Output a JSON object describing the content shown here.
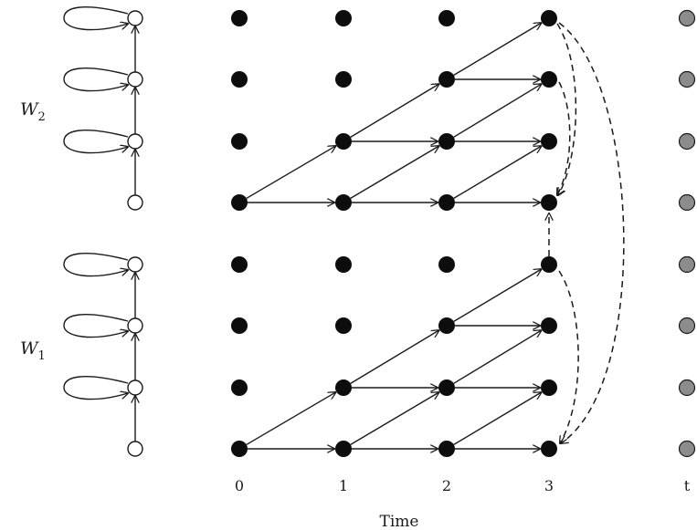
{
  "diagram": {
    "left_chains": [
      {
        "label": "W",
        "subscript": "2"
      },
      {
        "label": "W",
        "subscript": "1"
      }
    ],
    "axis": {
      "ticks": [
        "0",
        "1",
        "2",
        "3",
        "t"
      ],
      "title": "Time"
    },
    "colors": {
      "filled_node": "#0d0d0d",
      "open_node": "#ffffff",
      "future_node": "#8c8c8c",
      "stroke": "#1a1a1a"
    }
  }
}
